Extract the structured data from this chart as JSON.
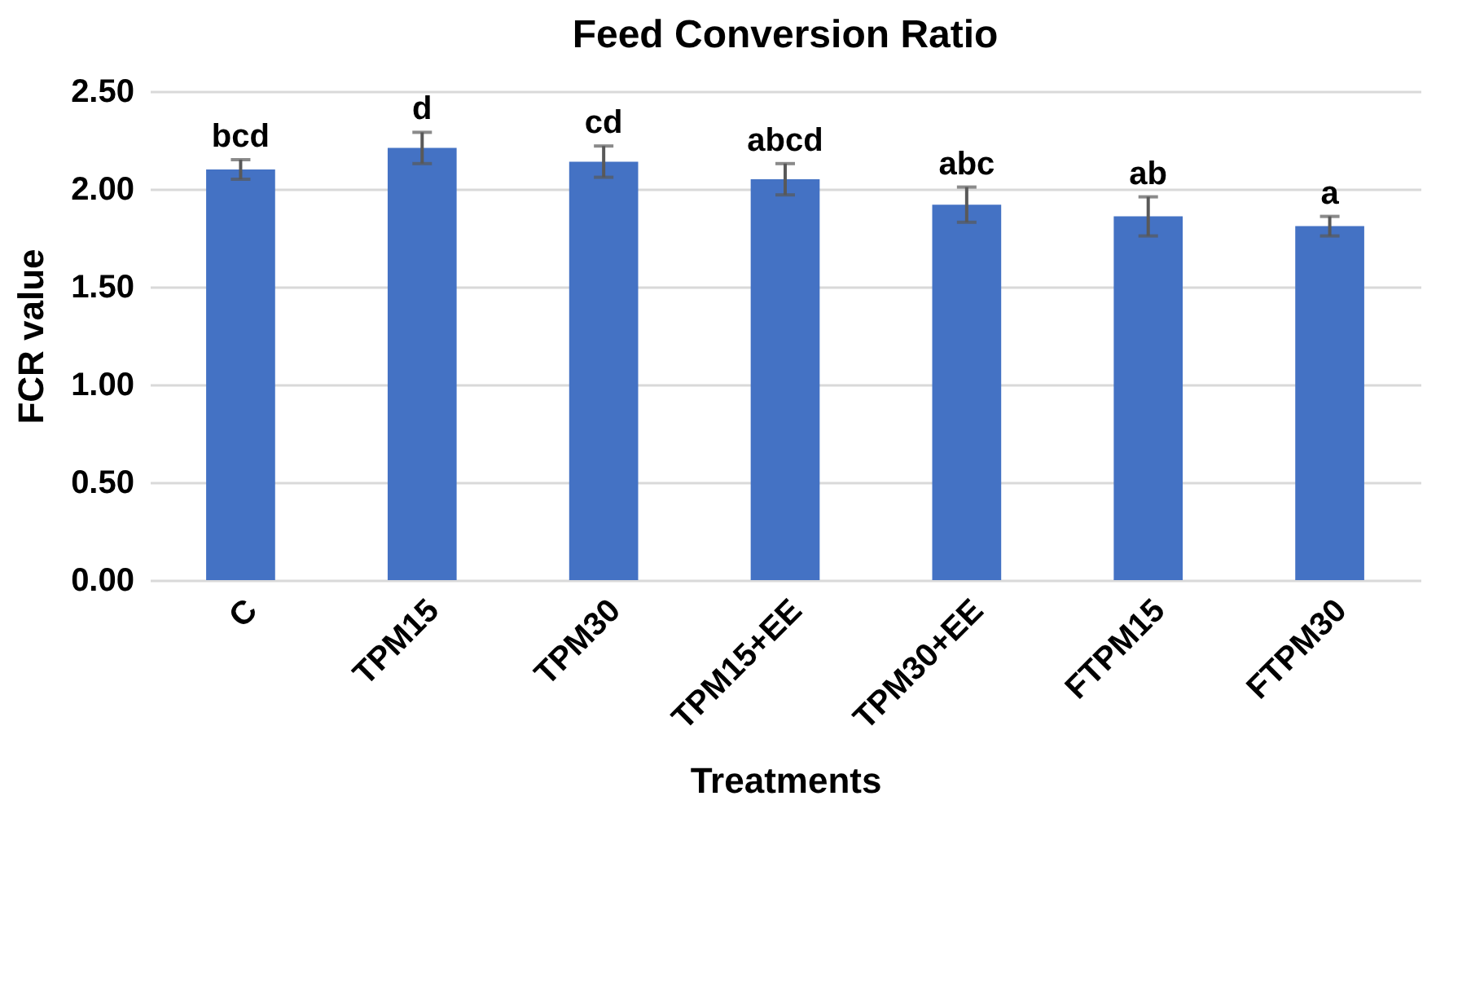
{
  "chart_data": {
    "type": "bar",
    "title": "Feed Conversion Ratio",
    "xlabel": "Treatments",
    "ylabel": "FCR value",
    "categories": [
      "C",
      "TPM15",
      "TPM30",
      "TPM15+EE",
      "TPM30+EE",
      "FTPM15",
      "FTPM30"
    ],
    "values": [
      2.1,
      2.21,
      2.14,
      2.05,
      1.92,
      1.86,
      1.81
    ],
    "errors": [
      0.05,
      0.08,
      0.08,
      0.08,
      0.09,
      0.1,
      0.05
    ],
    "color": "#4472c4",
    "ylim": [
      0,
      2.5
    ],
    "yticks": [
      {
        "value": 0,
        "label": "0.00"
      },
      {
        "value": 0.5,
        "label": "0.50"
      },
      {
        "value": 1,
        "label": "1.00"
      },
      {
        "value": 1.5,
        "label": "1.50"
      },
      {
        "value": 2,
        "label": "2.00"
      },
      {
        "value": 2.5,
        "label": "2.50"
      }
    ],
    "grid": "y",
    "annotations": [
      {
        "text": "bcd",
        "x": "C",
        "y": 2.15
      },
      {
        "text": "d",
        "x": "TPM15",
        "y": 2.29
      },
      {
        "text": "cd",
        "x": "TPM30",
        "y": 2.22
      },
      {
        "text": "abcd",
        "x": "TPM15+EE",
        "y": 2.13
      },
      {
        "text": "abc",
        "x": "TPM30+EE",
        "y": 2.01
      },
      {
        "text": "ab",
        "x": "FTPM15",
        "y": 1.96
      },
      {
        "text": "a",
        "x": "FTPM30",
        "y": 1.86
      }
    ]
  }
}
